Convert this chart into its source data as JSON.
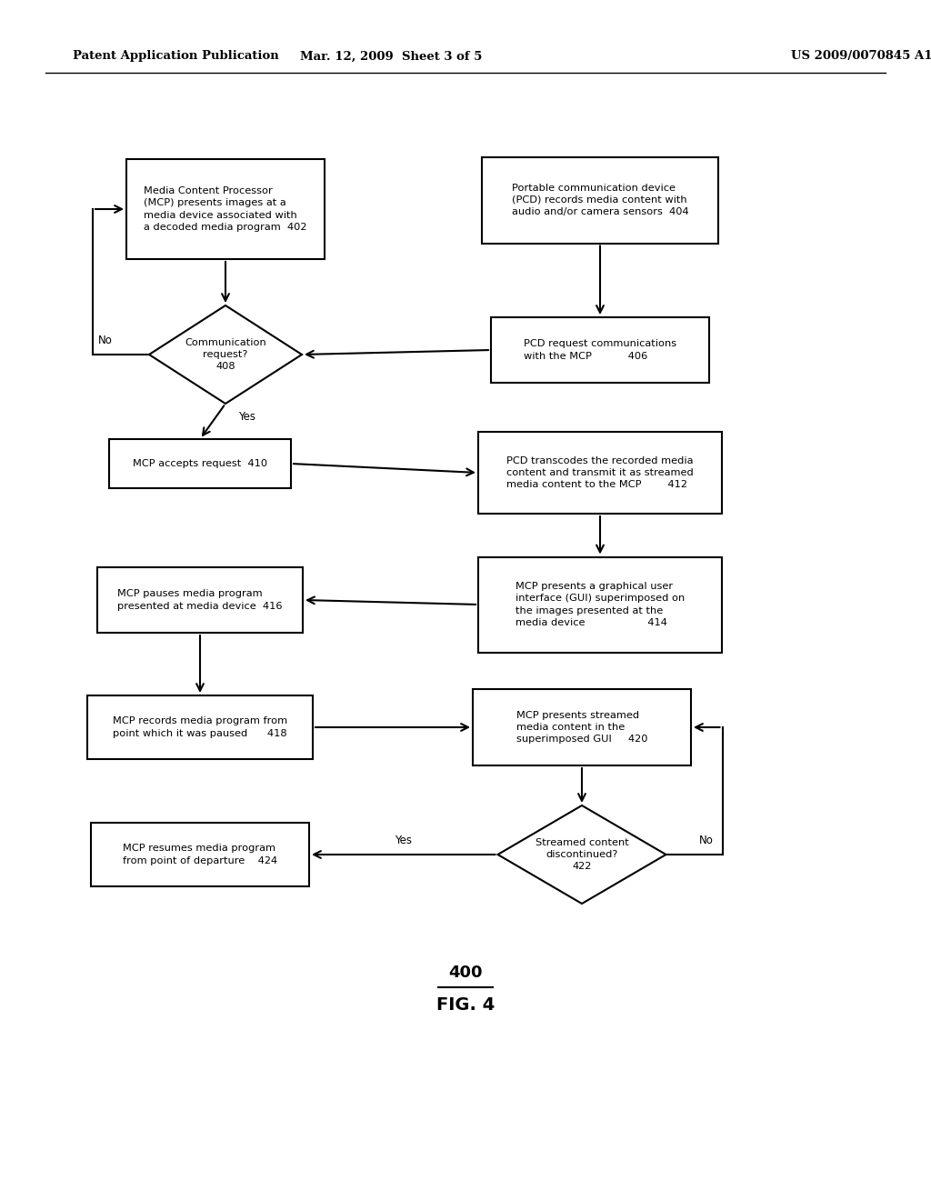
{
  "header_left": "Patent Application Publication",
  "header_mid": "Mar. 12, 2009  Sheet 3 of 5",
  "header_right": "US 2009/0070845 A1",
  "fig_label": "400",
  "fig_name": "FIG. 4",
  "background_color": "#ffffff"
}
